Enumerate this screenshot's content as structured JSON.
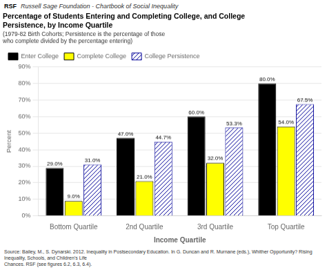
{
  "chart_data": {
    "type": "bar",
    "header": [
      "RSF",
      "Russell Sage Foundation - Chartbook of Social Inequality"
    ],
    "title": [
      "Percentage of Students Entering and Completing College, and College",
      "Persistence, by Income Quartile"
    ],
    "subtitle": [
      "(1979-82 Birth Cohorts; Persistence is the percentage of those",
      "who complete divided by the percentage entering)"
    ],
    "source": "Source: Bailey, M., S. Dynarski. 2012. Inequality in Postsecondary Education. In G. Duncan and R. Murnane (eds.), Whither Opportunity? Rising Inequality, Schools, and Children’s Life\nChances. RSF (see figures 6.2, 6.3, 6.4).",
    "xlabel": "Income Quartile",
    "ylabel": "Percent",
    "categories": [
      "Bottom Quartile",
      "2nd Quartile",
      "3rd Quartile",
      "Top Quartile"
    ],
    "series": [
      {
        "name": "Enter College",
        "color": "#000000",
        "values": [
          29.0,
          47.0,
          60.0,
          80.0
        ],
        "value_labels": [
          "29.0%",
          "47.0%",
          "60.0%",
          "80.0%"
        ]
      },
      {
        "name": "Complete College",
        "color": "#ffff00",
        "values": [
          9.0,
          21.0,
          32.0,
          54.0
        ],
        "value_labels": [
          "9.0%",
          "21.0%",
          "32.0%",
          "54.0%"
        ]
      },
      {
        "name": "College Persistence",
        "color": "#000099",
        "values": [
          31.0,
          44.7,
          53.3,
          67.5
        ],
        "value_labels": [
          "31.0%",
          "44.7%",
          "53.3%",
          "67.5%"
        ]
      }
    ],
    "ylim": [
      0,
      90
    ],
    "yticks": [
      {
        "value": 0,
        "label": "0%"
      },
      {
        "value": 10,
        "label": "10%"
      },
      {
        "value": 20,
        "label": "20%"
      },
      {
        "value": 30,
        "label": "30%"
      },
      {
        "value": 40,
        "label": "40%"
      },
      {
        "value": 50,
        "label": "50%"
      },
      {
        "value": 60,
        "label": "60%"
      },
      {
        "value": 70,
        "label": "70%"
      },
      {
        "value": 80,
        "label": "80%"
      },
      {
        "value": 90,
        "label": "90%"
      }
    ],
    "grid": true,
    "legend": "upper left",
    "data_labels": true
  }
}
